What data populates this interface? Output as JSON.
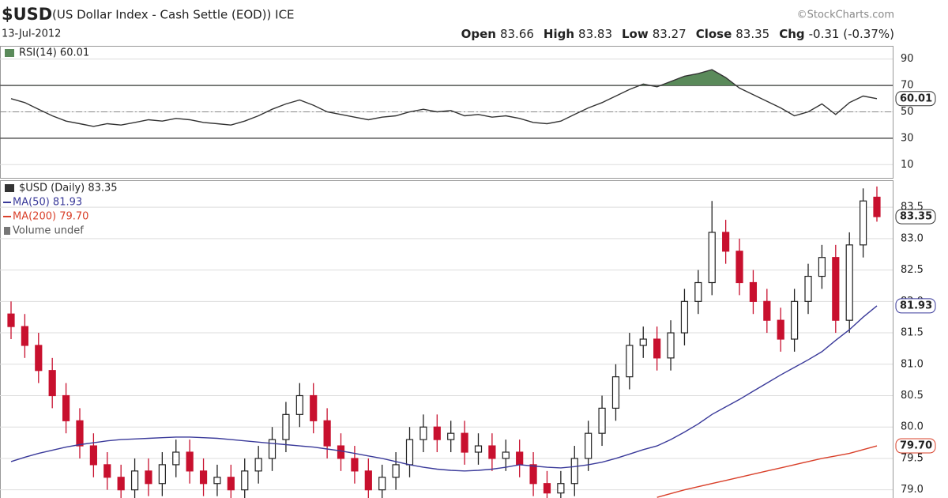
{
  "header": {
    "symbol": "$USD",
    "description": "(US Dollar Index - Cash Settle (EOD)) ICE",
    "date": "13-Jul-2012",
    "credit": "©StockCharts.com",
    "quote": [
      {
        "label": "Open",
        "value": "83.66"
      },
      {
        "label": "High",
        "value": "83.83"
      },
      {
        "label": "Low",
        "value": "83.27"
      },
      {
        "label": "Close",
        "value": "83.35"
      },
      {
        "label": "Chg",
        "value": "-0.31 (-0.37%)"
      }
    ]
  },
  "chart_data": [
    {
      "type": "line",
      "title": "RSI(14) 60.01",
      "color": "#333333",
      "fill_color": "#5a8a5a",
      "tag": "60.01",
      "values": [
        60,
        57,
        52,
        47,
        43,
        41,
        39,
        41,
        40,
        42,
        44,
        43,
        45,
        44,
        42,
        41,
        40,
        43,
        47,
        52,
        56,
        59,
        55,
        50,
        48,
        46,
        44,
        46,
        47,
        50,
        52,
        50,
        51,
        47,
        48,
        46,
        47,
        45,
        42,
        41,
        43,
        48,
        53,
        57,
        62,
        67,
        71,
        69,
        73,
        77,
        79,
        82,
        76,
        68,
        63,
        58,
        53,
        47,
        50,
        56,
        48,
        57,
        62,
        60.01
      ],
      "ylim": [
        0,
        100
      ],
      "yticks": [
        10,
        30,
        50,
        70,
        90
      ],
      "levels": [
        30,
        70
      ],
      "midline": 50,
      "grid": true
    },
    {
      "type": "candlestick",
      "title": "$USD (Daily) 83.35",
      "tag": "83.35",
      "up_color": "#222222",
      "down_color": "#c8102e",
      "open": [
        81.8,
        81.6,
        81.3,
        80.9,
        80.5,
        80.1,
        79.7,
        79.4,
        79.2,
        79.0,
        79.3,
        79.1,
        79.4,
        79.6,
        79.3,
        79.1,
        79.2,
        79.0,
        79.3,
        79.5,
        79.8,
        80.2,
        80.5,
        80.1,
        79.7,
        79.5,
        79.3,
        79.0,
        79.2,
        79.4,
        79.8,
        80.0,
        79.8,
        79.9,
        79.6,
        79.7,
        79.5,
        79.6,
        79.4,
        79.1,
        78.95,
        79.1,
        79.5,
        79.9,
        80.3,
        80.8,
        81.3,
        81.4,
        81.1,
        81.5,
        82.0,
        82.3,
        83.1,
        82.8,
        82.3,
        82.0,
        81.7,
        81.4,
        82.0,
        82.4,
        82.7,
        81.7,
        82.9,
        83.66
      ],
      "high": [
        82.0,
        81.8,
        81.5,
        81.1,
        80.7,
        80.3,
        79.9,
        79.6,
        79.4,
        79.5,
        79.5,
        79.6,
        79.8,
        79.8,
        79.5,
        79.4,
        79.4,
        79.5,
        79.7,
        80.0,
        80.4,
        80.7,
        80.7,
        80.3,
        79.9,
        79.7,
        79.5,
        79.4,
        79.6,
        80.0,
        80.2,
        80.2,
        80.1,
        80.1,
        79.9,
        79.9,
        79.8,
        79.8,
        79.6,
        79.3,
        79.3,
        79.7,
        80.1,
        80.5,
        81.0,
        81.5,
        81.6,
        81.6,
        81.7,
        82.2,
        82.5,
        83.6,
        83.3,
        83.0,
        82.5,
        82.2,
        81.9,
        82.2,
        82.6,
        82.9,
        82.9,
        83.1,
        83.8,
        83.83
      ],
      "low": [
        81.4,
        81.1,
        80.7,
        80.3,
        79.9,
        79.5,
        79.2,
        79.0,
        78.8,
        78.8,
        78.9,
        78.9,
        79.2,
        79.1,
        78.9,
        78.9,
        78.8,
        78.8,
        79.1,
        79.3,
        79.6,
        80.0,
        79.9,
        79.5,
        79.3,
        79.1,
        78.8,
        78.8,
        79.0,
        79.2,
        79.6,
        79.6,
        79.6,
        79.4,
        79.4,
        79.3,
        79.3,
        79.2,
        78.9,
        78.8,
        78.8,
        78.9,
        79.3,
        79.7,
        80.1,
        80.6,
        81.1,
        80.9,
        80.9,
        81.3,
        81.8,
        82.1,
        82.6,
        82.1,
        81.8,
        81.5,
        81.2,
        81.2,
        81.8,
        82.2,
        81.5,
        81.5,
        82.7,
        83.27
      ],
      "close": [
        81.6,
        81.3,
        80.9,
        80.5,
        80.1,
        79.7,
        79.4,
        79.2,
        79.0,
        79.3,
        79.1,
        79.4,
        79.6,
        79.3,
        79.1,
        79.2,
        79.0,
        79.3,
        79.5,
        79.8,
        80.2,
        80.5,
        80.1,
        79.7,
        79.5,
        79.3,
        79.0,
        79.2,
        79.4,
        79.8,
        80.0,
        79.8,
        79.9,
        79.6,
        79.7,
        79.5,
        79.6,
        79.4,
        79.1,
        78.95,
        79.1,
        79.5,
        79.9,
        80.3,
        80.8,
        81.3,
        81.4,
        81.1,
        81.5,
        82.0,
        82.3,
        83.1,
        82.8,
        82.3,
        82.0,
        81.7,
        81.4,
        82.0,
        82.4,
        82.7,
        81.7,
        82.9,
        83.6,
        83.35
      ],
      "overlays": [
        {
          "name": "MA(50) 81.93",
          "color": "#3a3a9a",
          "tag": "81.93",
          "values": [
            79.45,
            79.52,
            79.58,
            79.63,
            79.68,
            79.72,
            79.75,
            79.78,
            79.8,
            79.81,
            79.82,
            79.83,
            79.84,
            79.84,
            79.83,
            79.82,
            79.8,
            79.78,
            79.76,
            79.74,
            79.72,
            79.7,
            79.68,
            79.65,
            79.62,
            79.58,
            79.54,
            79.5,
            79.45,
            79.4,
            79.36,
            79.33,
            79.31,
            79.3,
            79.31,
            79.33,
            79.36,
            79.4,
            79.38,
            79.36,
            79.35,
            79.37,
            79.4,
            79.44,
            79.5,
            79.57,
            79.64,
            79.7,
            79.8,
            79.92,
            80.05,
            80.2,
            80.32,
            80.44,
            80.57,
            80.7,
            80.83,
            80.95,
            81.07,
            81.2,
            81.38,
            81.55,
            81.75,
            81.93
          ]
        },
        {
          "name": "MA(200) 79.70",
          "color": "#d9402a",
          "tag": "79.70",
          "values": [
            null,
            null,
            null,
            null,
            null,
            null,
            null,
            null,
            null,
            null,
            null,
            null,
            null,
            null,
            null,
            null,
            null,
            null,
            null,
            null,
            null,
            null,
            null,
            null,
            null,
            null,
            null,
            null,
            null,
            null,
            null,
            null,
            null,
            null,
            null,
            null,
            null,
            null,
            null,
            null,
            null,
            null,
            null,
            null,
            null,
            null,
            null,
            78.88,
            78.94,
            79.0,
            79.05,
            79.1,
            79.15,
            79.2,
            79.25,
            79.3,
            79.35,
            79.4,
            79.45,
            79.5,
            79.54,
            79.58,
            79.64,
            79.7
          ]
        }
      ],
      "legend_extra": "Volume undef",
      "ylim": [
        78.87,
        83.93
      ],
      "yticks": [
        {
          "value": 79,
          "label": "79.0"
        },
        79.5,
        {
          "value": 80,
          "label": "80.0"
        },
        80.5,
        {
          "value": 81,
          "label": "81.0"
        },
        81.5,
        {
          "value": 82,
          "label": "82.0"
        },
        82.5,
        {
          "value": 83,
          "label": "83.0"
        },
        83.5
      ],
      "grid": true
    }
  ]
}
